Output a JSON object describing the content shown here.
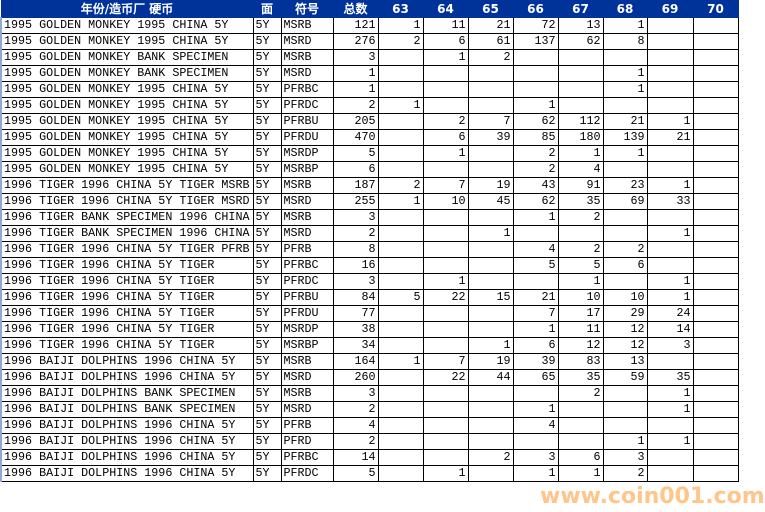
{
  "headers": [
    "年份/造币厂 硬币",
    "面",
    "符号",
    "总数",
    "63",
    "64",
    "65",
    "66",
    "67",
    "68",
    "69",
    "70"
  ],
  "colors": {
    "header_bg": "#003399",
    "header_text": "#ffffff",
    "watermark": "#ff9628"
  },
  "rows": [
    [
      "1995 GOLDEN MONKEY 1995 CHINA 5Y",
      "5Y",
      "MSRB",
      "121",
      "1",
      "11",
      "21",
      "72",
      "13",
      "1",
      "",
      ""
    ],
    [
      "1995 GOLDEN MONKEY 1995 CHINA 5Y",
      "5Y",
      "MSRD",
      "276",
      "2",
      "6",
      "61",
      "137",
      "62",
      "8",
      "",
      ""
    ],
    [
      "1995 GOLDEN MONKEY BANK SPECIMEN",
      "5Y",
      "MSRB",
      "3",
      "",
      "1",
      "2",
      "",
      "",
      "",
      "",
      ""
    ],
    [
      "1995 GOLDEN MONKEY BANK SPECIMEN",
      "5Y",
      "MSRD",
      "1",
      "",
      "",
      "",
      "",
      "",
      "1",
      "",
      ""
    ],
    [
      "1995 GOLDEN MONKEY 1995 CHINA 5Y",
      "5Y",
      "PFRBC",
      "1",
      "",
      "",
      "",
      "",
      "",
      "1",
      "",
      ""
    ],
    [
      "1995 GOLDEN MONKEY 1995 CHINA 5Y",
      "5Y",
      "PFRDC",
      "2",
      "1",
      "",
      "",
      "1",
      "",
      "",
      "",
      ""
    ],
    [
      "1995 GOLDEN MONKEY 1995 CHINA 5Y",
      "5Y",
      "PFRBU",
      "205",
      "",
      "2",
      "7",
      "62",
      "112",
      "21",
      "1",
      ""
    ],
    [
      "1995 GOLDEN MONKEY 1995 CHINA 5Y",
      "5Y",
      "PFRDU",
      "470",
      "",
      "6",
      "39",
      "85",
      "180",
      "139",
      "21",
      ""
    ],
    [
      "1995 GOLDEN MONKEY 1995 CHINA 5Y",
      "5Y",
      "MSRDP",
      "5",
      "",
      "1",
      "",
      "2",
      "1",
      "1",
      "",
      ""
    ],
    [
      "1995 GOLDEN MONKEY 1995 CHINA 5Y",
      "5Y",
      "MSRBP",
      "6",
      "",
      "",
      "",
      "2",
      "4",
      "",
      "",
      ""
    ],
    [
      "1996 TIGER 1996 CHINA 5Y TIGER MSRB",
      "5Y",
      "MSRB",
      "187",
      "2",
      "7",
      "19",
      "43",
      "91",
      "23",
      "1",
      ""
    ],
    [
      "1996 TIGER 1996 CHINA 5Y TIGER MSRD",
      "5Y",
      "MSRD",
      "255",
      "1",
      "10",
      "45",
      "62",
      "35",
      "69",
      "33",
      ""
    ],
    [
      "1996 TIGER BANK SPECIMEN 1996 CHINA",
      "5Y",
      "MSRB",
      "3",
      "",
      "",
      "",
      "1",
      "2",
      "",
      "",
      ""
    ],
    [
      "1996 TIGER BANK SPECIMEN 1996 CHINA",
      "5Y",
      "MSRD",
      "2",
      "",
      "",
      "1",
      "",
      "",
      "",
      "1",
      ""
    ],
    [
      "1996 TIGER 1996 CHINA 5Y TIGER PFRB",
      "5Y",
      "PFRB",
      "8",
      "",
      "",
      "",
      "4",
      "2",
      "2",
      "",
      ""
    ],
    [
      "1996 TIGER 1996 CHINA 5Y TIGER",
      "5Y",
      "PFRBC",
      "16",
      "",
      "",
      "",
      "5",
      "5",
      "6",
      "",
      ""
    ],
    [
      "1996 TIGER 1996 CHINA 5Y TIGER",
      "5Y",
      "PFRDC",
      "3",
      "",
      "1",
      "",
      "",
      "1",
      "",
      "1",
      ""
    ],
    [
      "1996 TIGER 1996 CHINA 5Y TIGER",
      "5Y",
      "PFRBU",
      "84",
      "5",
      "22",
      "15",
      "21",
      "10",
      "10",
      "1",
      ""
    ],
    [
      "1996 TIGER 1996 CHINA 5Y TIGER",
      "5Y",
      "PFRDU",
      "77",
      "",
      "",
      "",
      "7",
      "17",
      "29",
      "24",
      ""
    ],
    [
      "1996 TIGER 1996 CHINA 5Y TIGER",
      "5Y",
      "MSRDP",
      "38",
      "",
      "",
      "",
      "1",
      "11",
      "12",
      "14",
      ""
    ],
    [
      "1996 TIGER 1996 CHINA 5Y TIGER",
      "5Y",
      "MSRBP",
      "34",
      "",
      "",
      "1",
      "6",
      "12",
      "12",
      "3",
      ""
    ],
    [
      "1996 BAIJI DOLPHINS 1996 CHINA 5Y",
      "5Y",
      "MSRB",
      "164",
      "1",
      "7",
      "19",
      "39",
      "83",
      "13",
      "",
      ""
    ],
    [
      "1996 BAIJI DOLPHINS 1996 CHINA 5Y",
      "5Y",
      "MSRD",
      "260",
      "",
      "22",
      "44",
      "65",
      "35",
      "59",
      "35",
      ""
    ],
    [
      "1996 BAIJI DOLPHINS BANK SPECIMEN",
      "5Y",
      "MSRB",
      "3",
      "",
      "",
      "",
      "",
      "2",
      "",
      "1",
      ""
    ],
    [
      "1996 BAIJI DOLPHINS BANK SPECIMEN",
      "5Y",
      "MSRD",
      "2",
      "",
      "",
      "",
      "1",
      "",
      "",
      "1",
      ""
    ],
    [
      "1996 BAIJI DOLPHINS 1996 CHINA 5Y",
      "5Y",
      "PFRB",
      "4",
      "",
      "",
      "",
      "4",
      "",
      "",
      "",
      ""
    ],
    [
      "1996 BAIJI DOLPHINS 1996 CHINA 5Y",
      "5Y",
      "PFRD",
      "2",
      "",
      "",
      "",
      "",
      "",
      "1",
      "1",
      ""
    ],
    [
      "1996 BAIJI DOLPHINS 1996 CHINA 5Y",
      "5Y",
      "PFRBC",
      "14",
      "",
      "",
      "2",
      "3",
      "6",
      "3",
      "",
      ""
    ],
    [
      "1996 BAIJI DOLPHINS 1996 CHINA 5Y",
      "5Y",
      "PFRDC",
      "5",
      "",
      "1",
      "",
      "1",
      "1",
      "2",
      "",
      ""
    ]
  ],
  "watermark": "www.coin001.com"
}
